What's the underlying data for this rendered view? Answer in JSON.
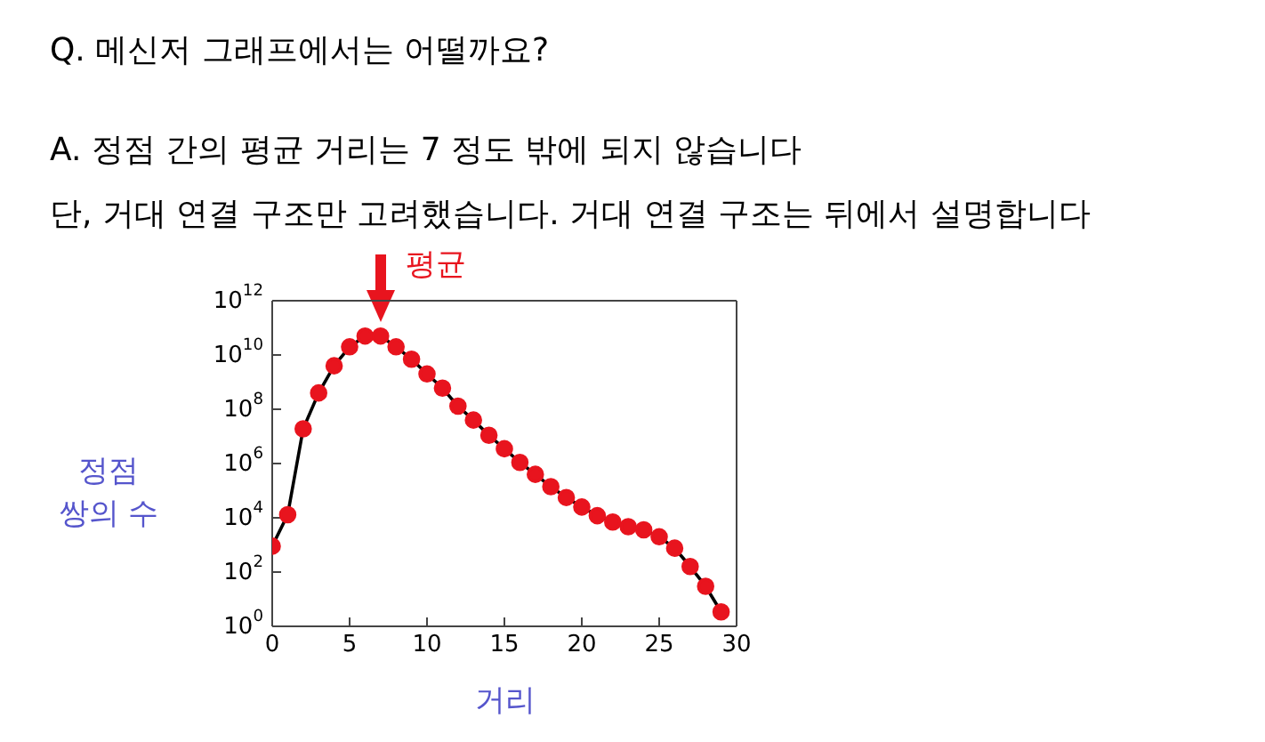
{
  "chart_data": {
    "type": "line",
    "title": "Q. 메신저 그래프에서는 어떨까요?",
    "subtitle": "A. 정점 간의 평균 거리는 7 정도 밖에 되지 않습니다",
    "xlabel": "거리",
    "ylabel": "정점\n쌍의 수",
    "annotations": [
      "단, 거대 연결 구조만 고려했습니다. 거대 연결 구조는 뒤에서 설명합니다",
      {
        "text": "평균",
        "x": 7,
        "y": 50000000000
      }
    ],
    "x": [
      0,
      1,
      2,
      3,
      4,
      5,
      6,
      7,
      8,
      9,
      10,
      11,
      12,
      13,
      14,
      15,
      16,
      17,
      18,
      19,
      20,
      21,
      22,
      23,
      24,
      25,
      26,
      27,
      28,
      29
    ],
    "series": [
      {
        "color": "#e8141e",
        "values": [
          900,
          13000,
          19000000,
          400000000,
          4000000000,
          20000000000,
          50000000000,
          50000000000,
          20000000000,
          7000000000,
          2000000000,
          600000000,
          130000000,
          40000000,
          11000000,
          3500000,
          1100000,
          400000,
          140000,
          56000,
          25000,
          12000,
          7000,
          4700,
          3600,
          2000,
          760,
          160,
          30,
          3.4
        ]
      }
    ],
    "log": "y",
    "xlim": [
      0,
      30
    ],
    "xticks": [
      0,
      5,
      10,
      15,
      20,
      25,
      30
    ],
    "ylim": [
      1,
      1000000000000
    ],
    "yticks": [
      {
        "value": 1,
        "label": "10$^{0}$"
      },
      {
        "value": 100,
        "label": "10$^{2}$"
      },
      {
        "value": 10000,
        "label": "10$^{4}$"
      },
      {
        "value": 1000000,
        "label": "10$^{6}$"
      },
      {
        "value": 100000000,
        "label": "10$^{8}$"
      },
      {
        "value": 10000000000,
        "label": "10$^{10}$"
      },
      {
        "value": 1000000000000,
        "label": "10$^{12}$"
      }
    ],
    "grid": false,
    "legend": false,
    "marker": "circle",
    "line_style": "solid"
  }
}
